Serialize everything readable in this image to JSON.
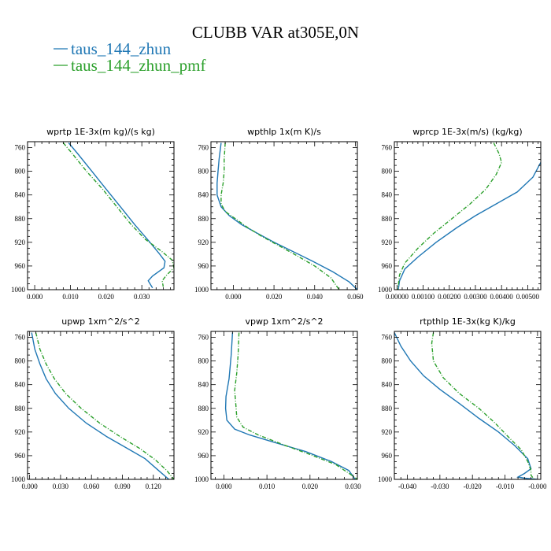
{
  "figure": {
    "title": "CLUBB VAR at305E,0N",
    "legend": [
      {
        "name": "taus_144_zhun",
        "color": "#1f77b4",
        "dash": "solid"
      },
      {
        "name": "taus_144_zhun_pmf",
        "color": "#2ca02c",
        "dash": "dashdot"
      }
    ]
  },
  "chart_data": [
    {
      "type": "line",
      "title": "wprtp  1E-3x(m kg)/(s kg)",
      "xlim": [
        -0.002,
        0.039
      ],
      "ylim": [
        1000,
        750
      ],
      "grid": false,
      "xticks": [
        0.0,
        0.01,
        0.02,
        0.03
      ],
      "xtick_labels": [
        "0.000",
        "0.010",
        "0.020",
        "0.030"
      ],
      "yticks": [
        760,
        800,
        840,
        880,
        920,
        960,
        1000
      ],
      "series": [
        {
          "name": "taus_144_zhun",
          "points": [
            [
              0.0095,
              752
            ],
            [
              0.012,
              770
            ],
            [
              0.016,
              800
            ],
            [
              0.02,
              830
            ],
            [
              0.024,
              860
            ],
            [
              0.028,
              890
            ],
            [
              0.032,
              918
            ],
            [
              0.035,
              940
            ],
            [
              0.0365,
              952
            ],
            [
              0.0362,
              963
            ],
            [
              0.033,
              977
            ],
            [
              0.0318,
              985
            ],
            [
              0.0325,
              992
            ],
            [
              0.033,
              997
            ]
          ]
        },
        {
          "name": "taus_144_zhun_pmf",
          "points": [
            [
              0.008,
              752
            ],
            [
              0.0105,
              770
            ],
            [
              0.0145,
              800
            ],
            [
              0.019,
              830
            ],
            [
              0.023,
              860
            ],
            [
              0.027,
              890
            ],
            [
              0.031,
              915
            ],
            [
              0.0355,
              935
            ],
            [
              0.0385,
              950
            ],
            [
              0.039,
              963
            ],
            [
              0.037,
              975
            ],
            [
              0.0357,
              985
            ],
            [
              0.036,
              995
            ]
          ]
        }
      ]
    },
    {
      "type": "line",
      "title": "wpthlp  1x(m K)/s",
      "xlim": [
        -0.011,
        0.061
      ],
      "ylim": [
        1000,
        750
      ],
      "grid": false,
      "xticks": [
        0.0,
        0.02,
        0.04,
        0.06
      ],
      "xtick_labels": [
        "0.000",
        "0.020",
        "0.040",
        "0.060"
      ],
      "yticks": [
        760,
        800,
        840,
        880,
        920,
        960,
        1000
      ],
      "series": [
        {
          "name": "taus_144_zhun",
          "points": [
            [
              -0.006,
              752
            ],
            [
              -0.007,
              780
            ],
            [
              -0.0075,
              800
            ],
            [
              -0.008,
              820
            ],
            [
              -0.008,
              840
            ],
            [
              -0.006,
              860
            ],
            [
              -0.002,
              875
            ],
            [
              0.004,
              890
            ],
            [
              0.012,
              905
            ],
            [
              0.02,
              920
            ],
            [
              0.029,
              935
            ],
            [
              0.039,
              952
            ],
            [
              0.049,
              970
            ],
            [
              0.057,
              987
            ],
            [
              0.061,
              1000
            ]
          ]
        },
        {
          "name": "taus_144_zhun_pmf",
          "points": [
            [
              -0.004,
              752
            ],
            [
              -0.0045,
              780
            ],
            [
              -0.0045,
              800
            ],
            [
              -0.005,
              820
            ],
            [
              -0.006,
              840
            ],
            [
              -0.006,
              855
            ],
            [
              -0.004,
              868
            ],
            [
              0.001,
              880
            ],
            [
              0.007,
              895
            ],
            [
              0.014,
              910
            ],
            [
              0.022,
              925
            ],
            [
              0.031,
              942
            ],
            [
              0.04,
              960
            ],
            [
              0.048,
              980
            ],
            [
              0.052,
              1000
            ]
          ]
        }
      ]
    },
    {
      "type": "line",
      "title": "wprcp  1E-3x(m/s) (kg/kg)",
      "xlim": [
        -0.0001,
        0.0055
      ],
      "ylim": [
        1000,
        750
      ],
      "grid": false,
      "xticks": [
        0.0,
        0.001,
        0.002,
        0.003,
        0.004,
        0.005
      ],
      "xtick_labels": [
        "0.00000",
        "0.00100",
        "0.00200",
        "0.00300",
        "0.00400",
        "0.00500"
      ],
      "yticks": [
        760,
        800,
        840,
        880,
        920,
        960,
        1000
      ],
      "series": [
        {
          "name": "taus_144_zhun",
          "points": [
            [
              0.0055,
              785
            ],
            [
              0.0052,
              810
            ],
            [
              0.0046,
              835
            ],
            [
              0.0038,
              855
            ],
            [
              0.003,
              875
            ],
            [
              0.0023,
              895
            ],
            [
              0.0015,
              920
            ],
            [
              0.0008,
              945
            ],
            [
              0.0003,
              965
            ],
            [
              0.0001,
              985
            ],
            [
              5e-05,
              1000
            ]
          ]
        },
        {
          "name": "taus_144_zhun_pmf",
          "points": [
            [
              0.0037,
              752
            ],
            [
              0.0039,
              770
            ],
            [
              0.004,
              785
            ],
            [
              0.0038,
              805
            ],
            [
              0.0034,
              830
            ],
            [
              0.0028,
              855
            ],
            [
              0.0021,
              880
            ],
            [
              0.0014,
              905
            ],
            [
              0.0008,
              930
            ],
            [
              0.0003,
              955
            ],
            [
              0.0001,
              975
            ],
            [
              3e-05,
              1000
            ]
          ]
        }
      ]
    },
    {
      "type": "line",
      "title": "upwp  1xm^2/s^2",
      "xlim": [
        -0.002,
        0.14
      ],
      "ylim": [
        1000,
        750
      ],
      "grid": false,
      "xticks": [
        0.0,
        0.03,
        0.06,
        0.09,
        0.12
      ],
      "xtick_labels": [
        "0.000",
        "0.030",
        "0.060",
        "0.090",
        "0.120"
      ],
      "yticks": [
        760,
        800,
        840,
        880,
        920,
        960,
        1000
      ],
      "series": [
        {
          "name": "taus_144_zhun",
          "points": [
            [
              0.002,
              752
            ],
            [
              0.005,
              780
            ],
            [
              0.01,
              805
            ],
            [
              0.016,
              830
            ],
            [
              0.025,
              855
            ],
            [
              0.038,
              880
            ],
            [
              0.055,
              905
            ],
            [
              0.075,
              928
            ],
            [
              0.095,
              948
            ],
            [
              0.112,
              965
            ],
            [
              0.125,
              985
            ],
            [
              0.135,
              1000
            ]
          ]
        },
        {
          "name": "taus_144_zhun_pmf",
          "points": [
            [
              0.006,
              752
            ],
            [
              0.01,
              780
            ],
            [
              0.016,
              805
            ],
            [
              0.024,
              830
            ],
            [
              0.035,
              855
            ],
            [
              0.05,
              880
            ],
            [
              0.068,
              905
            ],
            [
              0.088,
              928
            ],
            [
              0.107,
              948
            ],
            [
              0.122,
              967
            ],
            [
              0.133,
              985
            ],
            [
              0.14,
              1000
            ]
          ]
        }
      ]
    },
    {
      "type": "line",
      "title": "vpwp  1xm^2/s^2",
      "xlim": [
        -0.003,
        0.031
      ],
      "ylim": [
        1000,
        750
      ],
      "grid": false,
      "xticks": [
        0.0,
        0.01,
        0.02,
        0.03
      ],
      "xtick_labels": [
        "0.000",
        "0.010",
        "0.020",
        "0.030"
      ],
      "yticks": [
        760,
        800,
        840,
        880,
        920,
        960,
        1000
      ],
      "series": [
        {
          "name": "taus_144_zhun",
          "points": [
            [
              0.002,
              752
            ],
            [
              0.0017,
              790
            ],
            [
              0.0012,
              830
            ],
            [
              0.0005,
              860
            ],
            [
              0.0004,
              880
            ],
            [
              0.0007,
              900
            ],
            [
              0.0025,
              915
            ],
            [
              0.006,
              925
            ],
            [
              0.012,
              938
            ],
            [
              0.019,
              953
            ],
            [
              0.025,
              970
            ],
            [
              0.029,
              985
            ],
            [
              0.0305,
              1000
            ]
          ]
        },
        {
          "name": "taus_144_zhun_pmf",
          "points": [
            [
              0.0035,
              752
            ],
            [
              0.0033,
              790
            ],
            [
              0.003,
              820
            ],
            [
              0.0025,
              850
            ],
            [
              0.0028,
              875
            ],
            [
              0.003,
              895
            ],
            [
              0.0045,
              912
            ],
            [
              0.008,
              925
            ],
            [
              0.014,
              942
            ],
            [
              0.02,
              958
            ],
            [
              0.026,
              975
            ],
            [
              0.0295,
              992
            ],
            [
              0.031,
              1000
            ]
          ]
        }
      ]
    },
    {
      "type": "line",
      "title": "rtpthlp  1E-3x(kg K)/kg",
      "xlim": [
        -0.044,
        0.001
      ],
      "ylim": [
        1000,
        750
      ],
      "grid": false,
      "xticks": [
        -0.04,
        -0.03,
        -0.02,
        -0.01,
        0.0
      ],
      "xtick_labels": [
        "-0.040",
        "-0.030",
        "-0.020",
        "-0.010",
        "-0.000"
      ],
      "yticks": [
        760,
        800,
        840,
        880,
        920,
        960,
        1000
      ],
      "series": [
        {
          "name": "taus_144_zhun",
          "points": [
            [
              -0.044,
              752
            ],
            [
              -0.042,
              775
            ],
            [
              -0.039,
              800
            ],
            [
              -0.035,
              825
            ],
            [
              -0.03,
              848
            ],
            [
              -0.024,
              872
            ],
            [
              -0.018,
              897
            ],
            [
              -0.012,
              920
            ],
            [
              -0.007,
              943
            ],
            [
              -0.003,
              965
            ],
            [
              -0.002,
              982
            ],
            [
              -0.004,
              990
            ],
            [
              -0.006,
              996
            ],
            [
              -0.004,
              998
            ],
            [
              0.0,
              1000
            ]
          ]
        },
        {
          "name": "taus_144_zhun_pmf",
          "points": [
            [
              -0.032,
              752
            ],
            [
              -0.0325,
              770
            ],
            [
              -0.032,
              800
            ],
            [
              -0.029,
              828
            ],
            [
              -0.024,
              855
            ],
            [
              -0.018,
              880
            ],
            [
              -0.013,
              905
            ],
            [
              -0.009,
              928
            ],
            [
              -0.005,
              950
            ],
            [
              -0.003,
              970
            ],
            [
              -0.002,
              985
            ],
            [
              -0.002,
              993
            ],
            [
              -0.001,
              1000
            ]
          ]
        }
      ]
    }
  ]
}
